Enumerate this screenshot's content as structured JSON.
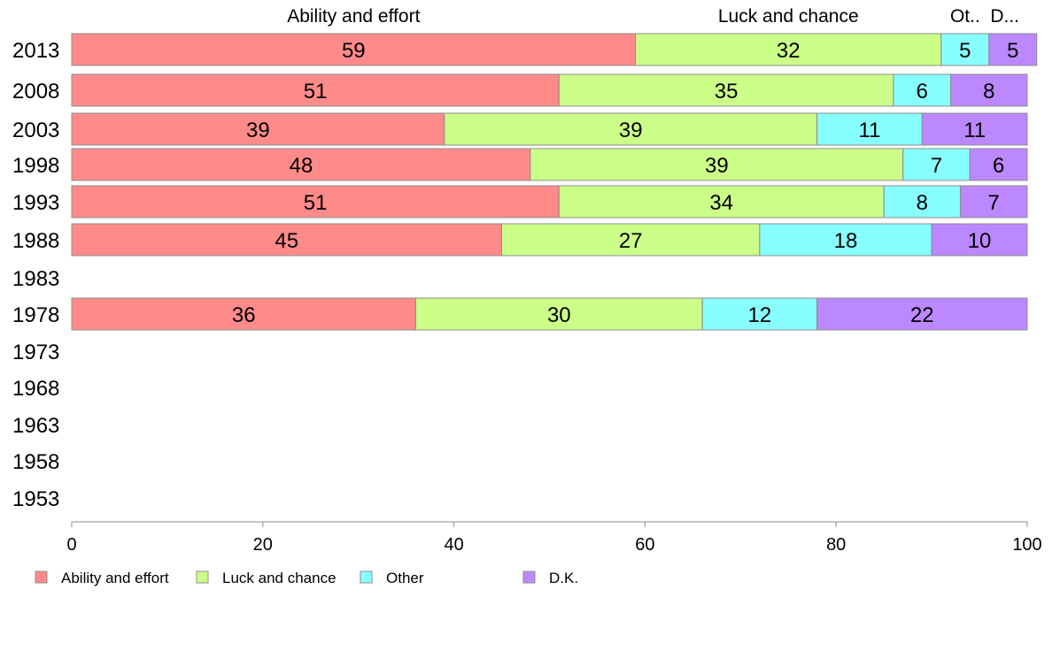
{
  "chart_data": {
    "type": "bar",
    "orientation": "horizontal",
    "stacked": true,
    "categories": [
      "2013",
      "2008",
      "2003",
      "1998",
      "1993",
      "1988",
      "1983",
      "1978",
      "1973",
      "1968",
      "1963",
      "1958",
      "1953"
    ],
    "series": [
      {
        "name": "Ability and effort",
        "color": "#FF8A8A",
        "values": [
          59,
          51,
          39,
          48,
          51,
          45,
          null,
          36,
          null,
          null,
          null,
          null,
          null
        ]
      },
      {
        "name": "Luck and chance",
        "color": "#CCFF88",
        "values": [
          32,
          35,
          39,
          39,
          34,
          27,
          null,
          30,
          null,
          null,
          null,
          null,
          null
        ]
      },
      {
        "name": "Other",
        "color": "#88FFFF",
        "values": [
          5,
          6,
          11,
          7,
          8,
          18,
          null,
          12,
          null,
          null,
          null,
          null,
          null
        ]
      },
      {
        "name": "D.K.",
        "color": "#BB88FF",
        "values": [
          5,
          8,
          11,
          6,
          7,
          10,
          null,
          22,
          null,
          null,
          null,
          null,
          null
        ]
      }
    ],
    "top_labels": [
      "Ability and effort",
      "Luck and chance",
      "Ot..",
      "D..."
    ],
    "x_ticks": [
      "0",
      "20",
      "40",
      "60",
      "80",
      "100"
    ],
    "xlim": [
      0,
      100
    ],
    "grid": false,
    "legend_position": "bottom-left"
  }
}
